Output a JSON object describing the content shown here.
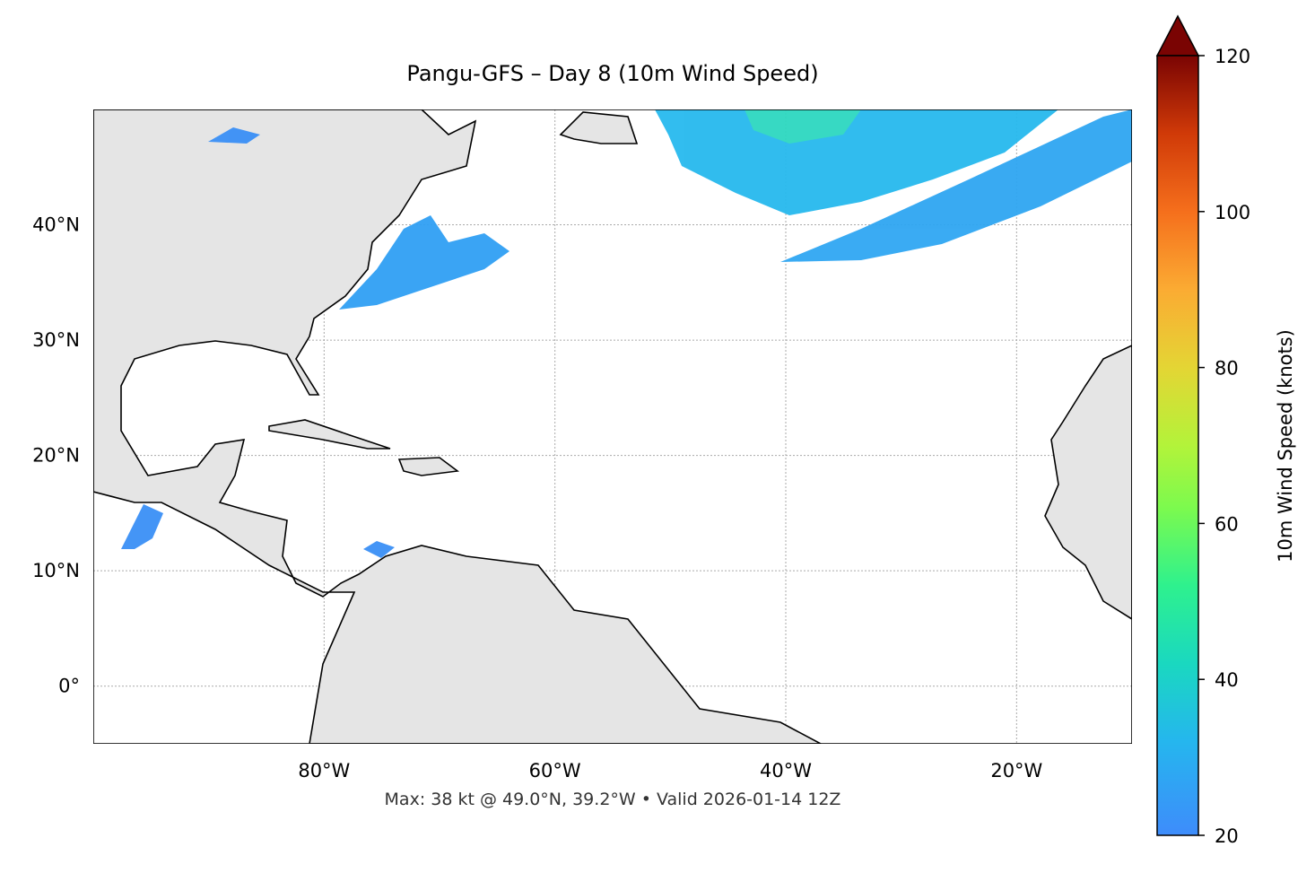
{
  "chart_data": {
    "type": "map",
    "title": "Pangu-GFS – Day 8 (10m Wind Speed)",
    "footer": "Max: 38 kt @ 49.0°N, 39.2°W • Valid 2026-01-14 12Z",
    "xlim": [
      -100,
      -10
    ],
    "ylim": [
      -5,
      50
    ],
    "xticks": [
      {
        "value": -80,
        "label": "80°W"
      },
      {
        "value": -60,
        "label": "60°W"
      },
      {
        "value": -40,
        "label": "40°W"
      },
      {
        "value": -20,
        "label": "20°W"
      }
    ],
    "yticks": [
      {
        "value": 0,
        "label": "0°"
      },
      {
        "value": 10,
        "label": "10°N"
      },
      {
        "value": 20,
        "label": "20°N"
      },
      {
        "value": 30,
        "label": "30°N"
      },
      {
        "value": 40,
        "label": "40°N"
      }
    ],
    "grid": true,
    "colorbar": {
      "label": "10m Wind Speed (knots)",
      "lim": [
        20,
        120
      ],
      "ticks": [
        20,
        40,
        60,
        80,
        100,
        120
      ]
    }
  }
}
